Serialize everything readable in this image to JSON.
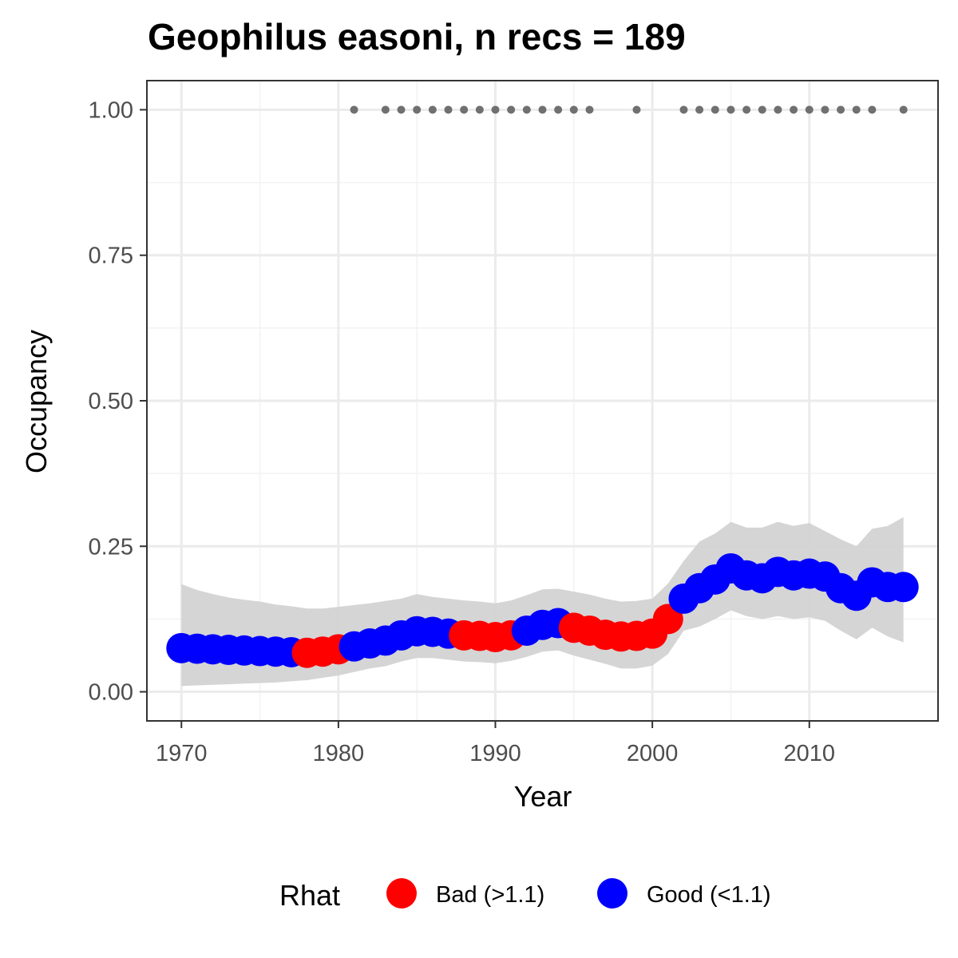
{
  "chart_data": {
    "type": "scatter",
    "title": "Geophilus easoni, n recs = 189",
    "xlabel": "Year",
    "ylabel": "Occupancy",
    "xlim": [
      1967.8,
      2018.2
    ],
    "ylim": [
      -0.05,
      1.05
    ],
    "x_ticks": [
      1970,
      1980,
      1990,
      2000,
      2010
    ],
    "x_tick_labels": [
      "1970",
      "1980",
      "1990",
      "2000",
      "2010"
    ],
    "y_ticks": [
      0,
      0.25,
      0.5,
      0.75,
      1.0
    ],
    "y_tick_labels": [
      "0.00",
      "0.25",
      "0.50",
      "0.75",
      "1.00"
    ],
    "grid": true,
    "legend": {
      "title": "Rhat",
      "position": "bottom",
      "items": [
        {
          "label": "Bad (>1.1)",
          "color": "#ff0000"
        },
        {
          "label": "Good (<1.1)",
          "color": "#0000ff"
        }
      ]
    },
    "colors": {
      "bad": "#ff0000",
      "good": "#0000ff",
      "ribbon": "#d3d3d3",
      "records": "#707070"
    },
    "series": [
      {
        "name": "Rhat",
        "x": [
          1970,
          1971,
          1972,
          1973,
          1974,
          1975,
          1976,
          1977,
          1978,
          1979,
          1980,
          1981,
          1982,
          1983,
          1984,
          1985,
          1986,
          1987,
          1988,
          1989,
          1990,
          1991,
          1992,
          1993,
          1994,
          1995,
          1996,
          1997,
          1998,
          1999,
          2000,
          2001,
          2002,
          2003,
          2004,
          2005,
          2006,
          2007,
          2008,
          2009,
          2010,
          2011,
          2012,
          2013,
          2014,
          2015,
          2016
        ],
        "y": [
          0.075,
          0.074,
          0.073,
          0.072,
          0.071,
          0.07,
          0.069,
          0.068,
          0.067,
          0.069,
          0.073,
          0.078,
          0.083,
          0.088,
          0.097,
          0.104,
          0.103,
          0.1,
          0.097,
          0.096,
          0.094,
          0.097,
          0.105,
          0.115,
          0.118,
          0.11,
          0.105,
          0.098,
          0.095,
          0.096,
          0.1,
          0.125,
          0.16,
          0.178,
          0.193,
          0.212,
          0.2,
          0.195,
          0.206,
          0.2,
          0.203,
          0.198,
          0.178,
          0.165,
          0.188,
          0.18,
          0.18
        ],
        "rhat": [
          "good",
          "good",
          "good",
          "good",
          "good",
          "good",
          "good",
          "good",
          "bad",
          "bad",
          "bad",
          "good",
          "good",
          "good",
          "good",
          "good",
          "good",
          "good",
          "bad",
          "bad",
          "bad",
          "bad",
          "good",
          "good",
          "good",
          "bad",
          "bad",
          "bad",
          "bad",
          "bad",
          "bad",
          "bad",
          "good",
          "good",
          "good",
          "good",
          "good",
          "good",
          "good",
          "good",
          "good",
          "good",
          "good",
          "good",
          "good",
          "good",
          "good"
        ],
        "lower": [
          0.01,
          0.011,
          0.012,
          0.013,
          0.014,
          0.015,
          0.016,
          0.018,
          0.02,
          0.024,
          0.028,
          0.034,
          0.04,
          0.044,
          0.052,
          0.058,
          0.058,
          0.055,
          0.052,
          0.051,
          0.049,
          0.053,
          0.06,
          0.069,
          0.071,
          0.062,
          0.055,
          0.048,
          0.04,
          0.04,
          0.045,
          0.065,
          0.105,
          0.112,
          0.125,
          0.14,
          0.13,
          0.125,
          0.13,
          0.125,
          0.128,
          0.122,
          0.105,
          0.09,
          0.11,
          0.095,
          0.085
        ],
        "upper": [
          0.185,
          0.175,
          0.168,
          0.162,
          0.158,
          0.155,
          0.15,
          0.147,
          0.143,
          0.143,
          0.146,
          0.149,
          0.152,
          0.156,
          0.16,
          0.168,
          0.163,
          0.16,
          0.157,
          0.155,
          0.152,
          0.157,
          0.166,
          0.176,
          0.177,
          0.172,
          0.167,
          0.16,
          0.155,
          0.156,
          0.16,
          0.186,
          0.225,
          0.258,
          0.272,
          0.292,
          0.282,
          0.282,
          0.292,
          0.285,
          0.29,
          0.276,
          0.262,
          0.25,
          0.28,
          0.285,
          0.3
        ]
      },
      {
        "name": "records",
        "x": [
          1981,
          1983,
          1984,
          1985,
          1986,
          1987,
          1988,
          1989,
          1990,
          1991,
          1992,
          1993,
          1994,
          1995,
          1996,
          1999,
          2002,
          2003,
          2004,
          2005,
          2006,
          2007,
          2008,
          2009,
          2010,
          2011,
          2012,
          2013,
          2014,
          2016
        ],
        "y": [
          1,
          1,
          1,
          1,
          1,
          1,
          1,
          1,
          1,
          1,
          1,
          1,
          1,
          1,
          1,
          1,
          1,
          1,
          1,
          1,
          1,
          1,
          1,
          1,
          1,
          1,
          1,
          1,
          1,
          1
        ]
      }
    ]
  }
}
